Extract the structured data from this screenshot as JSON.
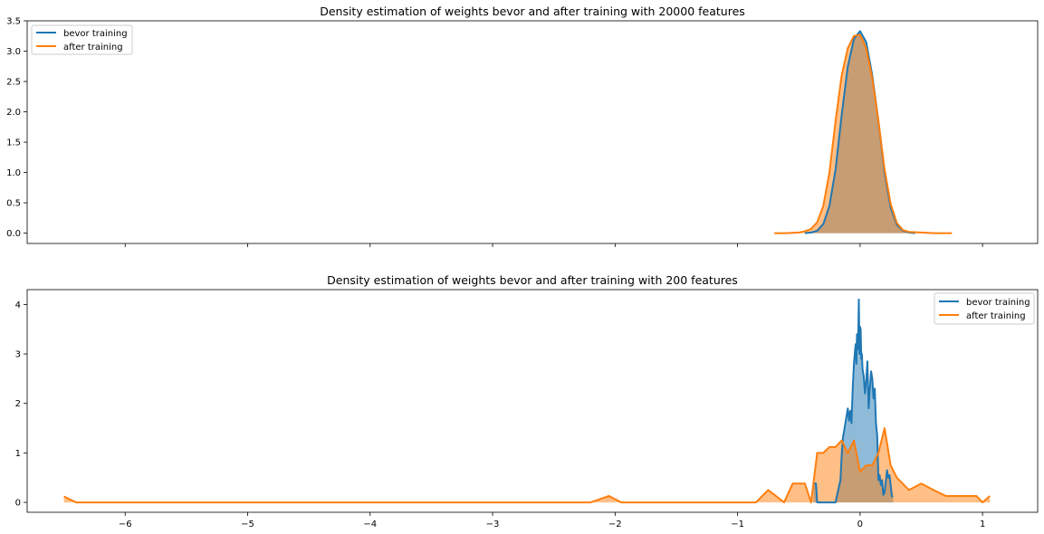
{
  "chart_data": [
    {
      "type": "area",
      "title": "Density estimation of weights bevor and after training with 20000 features",
      "xlabel": "",
      "ylabel": "",
      "xlim": [
        -6.8,
        1.45
      ],
      "ylim": [
        -0.17,
        3.5
      ],
      "x_ticks": [
        -6,
        -5,
        -4,
        -3,
        -2,
        -1,
        0,
        1
      ],
      "x_tick_labels_visible": false,
      "y_ticks": [
        0.0,
        0.5,
        1.0,
        1.5,
        2.0,
        2.5,
        3.0,
        3.5
      ],
      "y_tick_labels": [
        "0.0",
        "0.5",
        "1.0",
        "1.5",
        "2.0",
        "2.5",
        "3.0",
        "3.5"
      ],
      "legend_position": "top-left",
      "grid": false,
      "series": [
        {
          "name": "bevor training",
          "color": "#1f77b4",
          "x": [
            -0.45,
            -0.4,
            -0.35,
            -0.3,
            -0.25,
            -0.2,
            -0.15,
            -0.1,
            -0.05,
            0.0,
            0.05,
            0.1,
            0.15,
            0.2,
            0.25,
            0.3,
            0.35,
            0.4,
            0.45
          ],
          "y": [
            0.0,
            0.01,
            0.04,
            0.15,
            0.45,
            1.05,
            1.95,
            2.75,
            3.2,
            3.33,
            3.15,
            2.6,
            1.85,
            1.0,
            0.42,
            0.14,
            0.04,
            0.01,
            0.0
          ]
        },
        {
          "name": "after training",
          "color": "#ff7f0e",
          "x": [
            -0.7,
            -0.6,
            -0.5,
            -0.45,
            -0.4,
            -0.35,
            -0.3,
            -0.25,
            -0.2,
            -0.15,
            -0.1,
            -0.05,
            0.0,
            0.05,
            0.1,
            0.15,
            0.2,
            0.25,
            0.3,
            0.35,
            0.4,
            0.5,
            0.6,
            0.75
          ],
          "y": [
            0.0,
            0.0,
            0.01,
            0.03,
            0.07,
            0.18,
            0.45,
            1.0,
            1.85,
            2.6,
            3.05,
            3.25,
            3.27,
            3.05,
            2.55,
            1.85,
            1.05,
            0.48,
            0.17,
            0.05,
            0.02,
            0.01,
            0.0,
            0.0
          ]
        }
      ]
    },
    {
      "type": "area",
      "title": "Density estimation of weights bevor and after training with 200 features",
      "xlabel": "",
      "ylabel": "",
      "xlim": [
        -6.8,
        1.45
      ],
      "ylim": [
        -0.2,
        4.3
      ],
      "x_ticks": [
        -6,
        -5,
        -4,
        -3,
        -2,
        -1,
        0,
        1
      ],
      "x_tick_labels": [
        "−6",
        "−5",
        "−4",
        "−3",
        "−2",
        "−1",
        "0",
        "1"
      ],
      "y_ticks": [
        0,
        1,
        2,
        3,
        4
      ],
      "y_tick_labels": [
        "0",
        "1",
        "2",
        "3",
        "4"
      ],
      "legend_position": "top-right",
      "grid": false,
      "series": [
        {
          "name": "bevor training",
          "color": "#1f77b4",
          "x": [
            -0.38,
            -0.36,
            -0.35,
            -0.34,
            -0.2,
            -0.19,
            -0.16,
            -0.15,
            -0.14,
            -0.12,
            -0.1,
            -0.09,
            -0.08,
            -0.07,
            -0.06,
            -0.05,
            -0.04,
            -0.035,
            -0.03,
            -0.025,
            -0.02,
            -0.015,
            -0.01,
            -0.005,
            0.0,
            0.005,
            0.01,
            0.015,
            0.02,
            0.03,
            0.04,
            0.05,
            0.06,
            0.07,
            0.08,
            0.09,
            0.1,
            0.11,
            0.12,
            0.13,
            0.14,
            0.15,
            0.16,
            0.17,
            0.18,
            0.19,
            0.2,
            0.21,
            0.22,
            0.23,
            0.24,
            0.25,
            0.26,
            0.27
          ],
          "y": [
            0.38,
            0.38,
            0.0,
            0.0,
            0.0,
            0.12,
            0.45,
            0.95,
            1.3,
            1.6,
            1.9,
            1.65,
            1.85,
            1.6,
            2.3,
            2.8,
            3.1,
            3.2,
            2.8,
            3.4,
            3.1,
            3.35,
            4.1,
            3.0,
            3.55,
            3.5,
            2.9,
            3.0,
            2.7,
            2.55,
            2.2,
            2.45,
            2.85,
            1.9,
            2.3,
            2.65,
            2.5,
            2.1,
            2.3,
            1.6,
            1.35,
            0.45,
            0.55,
            0.35,
            0.45,
            0.15,
            0.2,
            0.42,
            0.65,
            0.5,
            0.55,
            0.35,
            0.12,
            0.12
          ]
        },
        {
          "name": "after training",
          "color": "#ff7f0e",
          "x": [
            -6.5,
            -6.4,
            -6.3,
            -2.2,
            -2.05,
            -1.95,
            -0.85,
            -0.75,
            -0.62,
            -0.55,
            -0.45,
            -0.4,
            -0.35,
            -0.3,
            -0.25,
            -0.2,
            -0.15,
            -0.1,
            -0.05,
            0.0,
            0.05,
            0.1,
            0.15,
            0.2,
            0.25,
            0.3,
            0.4,
            0.5,
            0.6,
            0.7,
            0.8,
            0.95,
            1.0,
            1.06
          ],
          "y": [
            0.12,
            0.0,
            0.0,
            0.0,
            0.13,
            0.0,
            0.0,
            0.25,
            0.0,
            0.38,
            0.38,
            0.0,
            1.0,
            1.0,
            1.12,
            1.12,
            1.25,
            1.0,
            1.25,
            0.62,
            0.75,
            0.75,
            1.0,
            1.5,
            0.75,
            0.5,
            0.25,
            0.38,
            0.25,
            0.13,
            0.13,
            0.13,
            0.0,
            0.13
          ]
        }
      ]
    }
  ]
}
